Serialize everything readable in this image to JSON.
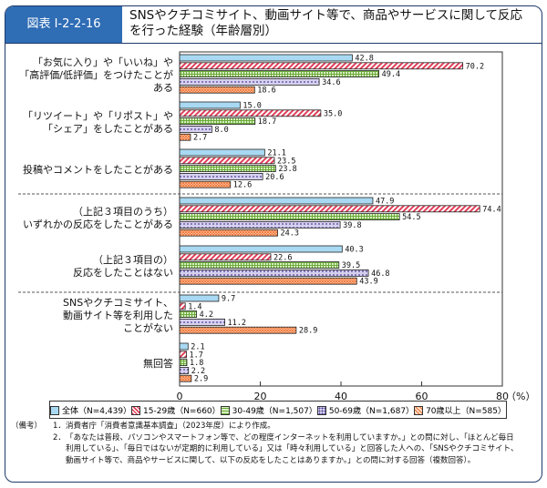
{
  "header": {
    "label": "図表 I-2-2-16",
    "title": "SNSやクチコミサイト、動画サイト等で、商品やサービスに関して反応を行った経験（年齢層別）"
  },
  "chart_data": {
    "type": "bar",
    "orientation": "horizontal",
    "categories": [
      [
        "「お気に入り」や「いいね」や",
        "「高評価/低評価」をつけたことが",
        "ある"
      ],
      [
        "「リツイート」や「リポスト」や",
        "「シェア」をしたことがある"
      ],
      [
        "投稿やコメントをしたことがある"
      ],
      [
        "（上記３項目のうち）",
        "いずれかの反応をしたことがある"
      ],
      [
        "（上記３項目の）",
        "反応をしたことはない"
      ],
      [
        "SNSやクチコミサイト、",
        "動画サイト等を利用した",
        "ことがない"
      ],
      [
        "無回答"
      ]
    ],
    "series": [
      {
        "name": "全体（N=4,439）",
        "color": "#a9d9f2",
        "pattern": "solid",
        "values": [
          42.8,
          15.0,
          21.1,
          47.9,
          40.3,
          9.7,
          2.1
        ]
      },
      {
        "name": "15-29歳（N=660）",
        "color": "#e0405a",
        "pattern": "diagonal",
        "values": [
          70.2,
          35.0,
          23.5,
          74.4,
          22.6,
          1.4,
          1.7
        ]
      },
      {
        "name": "30-49歳（N=1,507）",
        "color": "#6aaa3a",
        "pattern": "grid",
        "values": [
          49.4,
          18.7,
          23.8,
          54.5,
          39.5,
          4.2,
          1.8
        ]
      },
      {
        "name": "50-69歳（N=1,687）",
        "color": "#8878c0",
        "pattern": "dots",
        "values": [
          34.6,
          8.0,
          20.6,
          39.8,
          46.8,
          11.2,
          2.2
        ]
      },
      {
        "name": "70歳以上（N=585）",
        "color": "#f08040",
        "pattern": "crosshatch",
        "values": [
          18.6,
          2.7,
          12.6,
          24.3,
          43.9,
          28.9,
          2.9
        ]
      }
    ],
    "xlim": [
      0,
      80
    ],
    "xticks": [
      "0",
      "20",
      "40",
      "60",
      "80"
    ],
    "xunit": "（%）",
    "legend": "bottom",
    "grid": false
  },
  "notes": {
    "head": "（備考）",
    "items": [
      [
        "1．",
        "消費者庁「消費者意識基本調査」（2023年度）により作成。"
      ],
      [
        "2．",
        "「あなたは普段、パソコンやスマートフォン等で、どの程度インターネットを利用していますか。」との問に対し、「ほとんど毎日",
        "利用している」、「毎日ではないが定期的に利用している」又は「時々利用している」と回答した人への、「SNSやクチコミサイト、",
        "動画サイト等で、商品やサービスに関して、以下の反応をしたことはありますか。」との問に対する回答（複数回答）。"
      ]
    ]
  }
}
